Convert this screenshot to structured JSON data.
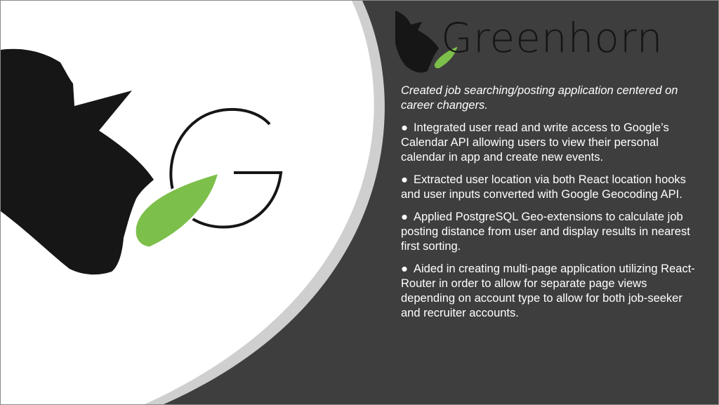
{
  "brand": {
    "wordmark": "Greenhorn"
  },
  "colors": {
    "dark_panel": "#3e3e3e",
    "accent_green": "#7cbf4a",
    "silhouette": "#161616",
    "swoosh_gray": "#cfcfcf"
  },
  "content": {
    "intro": "Created job searching/posting application centered on career changers.",
    "bullet_symbol": "●",
    "bullets": [
      "Integrated user read and write access to Google’s Calendar API allowing users to view their personal calendar in app and create new events.",
      "Extracted user location via both React location hooks and user inputs converted with Google Geocoding API.",
      "Applied PostgreSQL Geo-extensions to calculate job posting distance from user and display results in nearest first sorting.",
      "Aided in creating multi-page application utilizing React-Router in order to allow for separate page views depending on account type to allow for both job-seeker and recruiter accounts."
    ]
  }
}
